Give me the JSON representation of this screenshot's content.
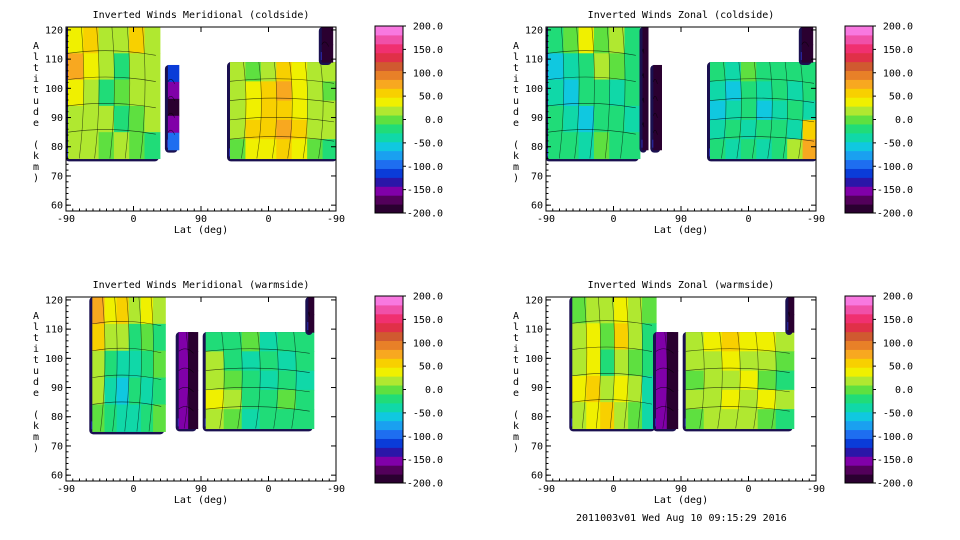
{
  "footer": "2011003v01 Wed Aug 10 09:15:29 2016",
  "colorbar": {
    "ticks": [
      "200.0",
      "150.0",
      "100.0",
      "50.0",
      "0.0",
      "-50.0",
      "-100.0",
      "-150.0",
      "-200.0"
    ],
    "colors": [
      "#2a0030",
      "#52005a",
      "#8000a8",
      "#2a16a8",
      "#0a3cd8",
      "#1e6ef0",
      "#1aa0f0",
      "#10c8e0",
      "#10d8a8",
      "#20dc78",
      "#5ee040",
      "#b0e830",
      "#f0f000",
      "#f8d000",
      "#f8a820",
      "#e88028",
      "#d05a30",
      "#e03048",
      "#f03070",
      "#f050a8",
      "#f878e0"
    ]
  },
  "chart_data": [
    {
      "type": "contour",
      "title": "Inverted Winds Meridional (coldside)",
      "xlabel": "Lat (deg)",
      "ylabel": "Altitude (km)",
      "xticks": [
        "-90",
        "0",
        "90",
        "0",
        "-90"
      ],
      "yticks": [
        "60",
        "70",
        "80",
        "90",
        "100",
        "110",
        "120"
      ],
      "ylim": [
        58,
        121
      ],
      "colorbar_range": [
        -200,
        200
      ],
      "blocks": [
        {
          "x0": 0.0,
          "x1": 0.34,
          "ybot": 76,
          "cells": [
            [
              40,
              50,
              20,
              20,
              60,
              20
            ],
            [
              80,
              40,
              10,
              -10,
              20,
              10
            ],
            [
              40,
              20,
              -20,
              0,
              10,
              20
            ],
            [
              20,
              10,
              20,
              -10,
              0,
              10
            ],
            [
              10,
              10,
              0,
              10,
              0,
              -20
            ]
          ]
        },
        {
          "x0": 0.37,
          "x1": 0.41,
          "ybot": 79,
          "ytop": 108,
          "cells": [
            [
              -120
            ],
            [
              -160
            ],
            [
              -200
            ],
            [
              -160
            ],
            [
              -100
            ]
          ]
        },
        {
          "x0": 0.6,
          "x1": 1.0,
          "ybot": 76,
          "ytop": 109,
          "cells": [
            [
              10,
              0,
              20,
              60,
              30,
              20,
              10
            ],
            [
              10,
              30,
              50,
              70,
              40,
              10,
              0
            ],
            [
              20,
              40,
              60,
              50,
              30,
              20,
              10
            ],
            [
              10,
              50,
              60,
              80,
              50,
              10,
              20
            ],
            [
              0,
              30,
              40,
              60,
              30,
              0,
              -10
            ]
          ]
        },
        {
          "x0": 0.94,
          "x1": 0.98,
          "ybot": 109,
          "cells": [
            [
              -200
            ],
            [
              -200
            ]
          ]
        }
      ]
    },
    {
      "type": "contour",
      "title": "Inverted Winds Zonal (coldside)",
      "xlabel": "Lat (deg)",
      "ylabel": "Altitude (km)",
      "xticks": [
        "-90",
        "0",
        "90",
        "0",
        "-90"
      ],
      "yticks": [
        "60",
        "70",
        "80",
        "90",
        "100",
        "110",
        "120"
      ],
      "ylim": [
        58,
        121
      ],
      "colorbar_range": [
        -200,
        200
      ],
      "blocks": [
        {
          "x0": 0.0,
          "x1": 0.34,
          "ybot": 76,
          "cells": [
            [
              -20,
              0,
              30,
              0,
              20,
              -10
            ],
            [
              -50,
              -30,
              -10,
              20,
              0,
              -20
            ],
            [
              -40,
              -60,
              -20,
              -10,
              -30,
              -10
            ],
            [
              -20,
              -30,
              -50,
              -20,
              -10,
              -30
            ],
            [
              -10,
              -20,
              -30,
              0,
              -20,
              -10
            ]
          ]
        },
        {
          "x0": 0.35,
          "x1": 0.37,
          "ybot": 79,
          "cells": [
            [
              -200
            ],
            [
              -200
            ],
            [
              -200
            ],
            [
              -200
            ],
            [
              -200
            ]
          ]
        },
        {
          "x0": 0.39,
          "x1": 0.42,
          "ybot": 79,
          "ytop": 108,
          "cells": [
            [
              -200
            ],
            [
              -200
            ],
            [
              -200
            ],
            [
              -200
            ],
            [
              -200
            ]
          ]
        },
        {
          "x0": 0.6,
          "x1": 1.0,
          "ybot": 76,
          "ytop": 109,
          "cells": [
            [
              -20,
              -30,
              0,
              -10,
              -20,
              -10,
              -20
            ],
            [
              -40,
              -50,
              -10,
              -30,
              -20,
              -30,
              -10
            ],
            [
              -60,
              -40,
              -20,
              -50,
              -30,
              -20,
              -30
            ],
            [
              -30,
              -20,
              -40,
              -20,
              -10,
              -30,
              60
            ],
            [
              -20,
              -30,
              -10,
              -30,
              -20,
              10,
              80
            ]
          ]
        },
        {
          "x0": 0.94,
          "x1": 0.98,
          "ybot": 109,
          "cells": [
            [
              -200
            ],
            [
              -200
            ]
          ]
        }
      ]
    },
    {
      "type": "contour",
      "title": "Inverted Winds Meridional (warmside)",
      "xlabel": "Lat (deg)",
      "ylabel": "Altitude (km)",
      "xticks": [
        "-90",
        "0",
        "90",
        "0",
        "-90"
      ],
      "yticks": [
        "60",
        "70",
        "80",
        "90",
        "100",
        "110",
        "120"
      ],
      "ylim": [
        58,
        121
      ],
      "colorbar_range": [
        -200,
        200
      ],
      "blocks": [
        {
          "x0": 0.09,
          "x1": 0.36,
          "ybot": 75,
          "cells": [
            [
              80,
              40,
              60,
              20,
              30,
              10
            ],
            [
              50,
              20,
              10,
              -10,
              0,
              -20
            ],
            [
              20,
              -20,
              -40,
              -30,
              -10,
              0
            ],
            [
              10,
              -30,
              -60,
              -20,
              -30,
              -10
            ],
            [
              0,
              -20,
              -40,
              -30,
              -10,
              0
            ]
          ]
        },
        {
          "x0": 0.41,
          "x1": 0.48,
          "ybot": 76,
          "ytop": 109,
          "cells": [
            [
              -150,
              -200
            ],
            [
              -150,
              -200
            ],
            [
              -150,
              -200
            ],
            [
              -150,
              -200
            ],
            [
              -150,
              -200
            ]
          ]
        },
        {
          "x0": 0.51,
          "x1": 0.91,
          "ybot": 76,
          "ytop": 109,
          "cells": [
            [
              -10,
              -20,
              0,
              -30,
              -10,
              -20
            ],
            [
              10,
              -10,
              -30,
              -20,
              -30,
              -10
            ],
            [
              20,
              0,
              -20,
              -40,
              -20,
              -30
            ],
            [
              30,
              10,
              -10,
              -20,
              0,
              -10
            ],
            [
              10,
              0,
              -30,
              -20,
              -10,
              -20
            ]
          ]
        },
        {
          "x0": 0.89,
          "x1": 0.91,
          "ybot": 109,
          "cells": [
            [
              -200
            ],
            [
              -200
            ]
          ]
        }
      ]
    },
    {
      "type": "contour",
      "title": "Inverted Winds Zonal (warmside)",
      "xlabel": "Lat (deg)",
      "ylabel": "Altitude (km)",
      "xticks": [
        "-90",
        "0",
        "90",
        "0",
        "-90"
      ],
      "yticks": [
        "60",
        "70",
        "80",
        "90",
        "100",
        "110",
        "120"
      ],
      "ylim": [
        58,
        121
      ],
      "colorbar_range": [
        -200,
        200
      ],
      "blocks": [
        {
          "x0": 0.09,
          "x1": 0.4,
          "ybot": 76,
          "cells": [
            [
              0,
              20,
              10,
              30,
              10,
              0
            ],
            [
              20,
              40,
              0,
              50,
              20,
              -10
            ],
            [
              10,
              30,
              -20,
              20,
              0,
              -20
            ],
            [
              30,
              50,
              20,
              40,
              10,
              -30
            ],
            [
              10,
              30,
              50,
              20,
              0,
              -40
            ]
          ]
        },
        {
          "x0": 0.4,
          "x1": 0.48,
          "ybot": 76,
          "ytop": 109,
          "cells": [
            [
              -150,
              -200
            ],
            [
              -150,
              -200
            ],
            [
              -150,
              -200
            ],
            [
              -150,
              -200
            ],
            [
              -150,
              -200
            ]
          ]
        },
        {
          "x0": 0.51,
          "x1": 0.91,
          "ybot": 76,
          "ytop": 109,
          "cells": [
            [
              10,
              30,
              50,
              40,
              30,
              20
            ],
            [
              20,
              10,
              30,
              20,
              10,
              0
            ],
            [
              0,
              20,
              10,
              30,
              0,
              -10
            ],
            [
              10,
              20,
              40,
              20,
              30,
              10
            ],
            [
              0,
              10,
              20,
              10,
              0,
              -10
            ]
          ]
        },
        {
          "x0": 0.89,
          "x1": 0.91,
          "ybot": 109,
          "cells": [
            [
              -200
            ],
            [
              -200
            ]
          ]
        }
      ]
    }
  ]
}
